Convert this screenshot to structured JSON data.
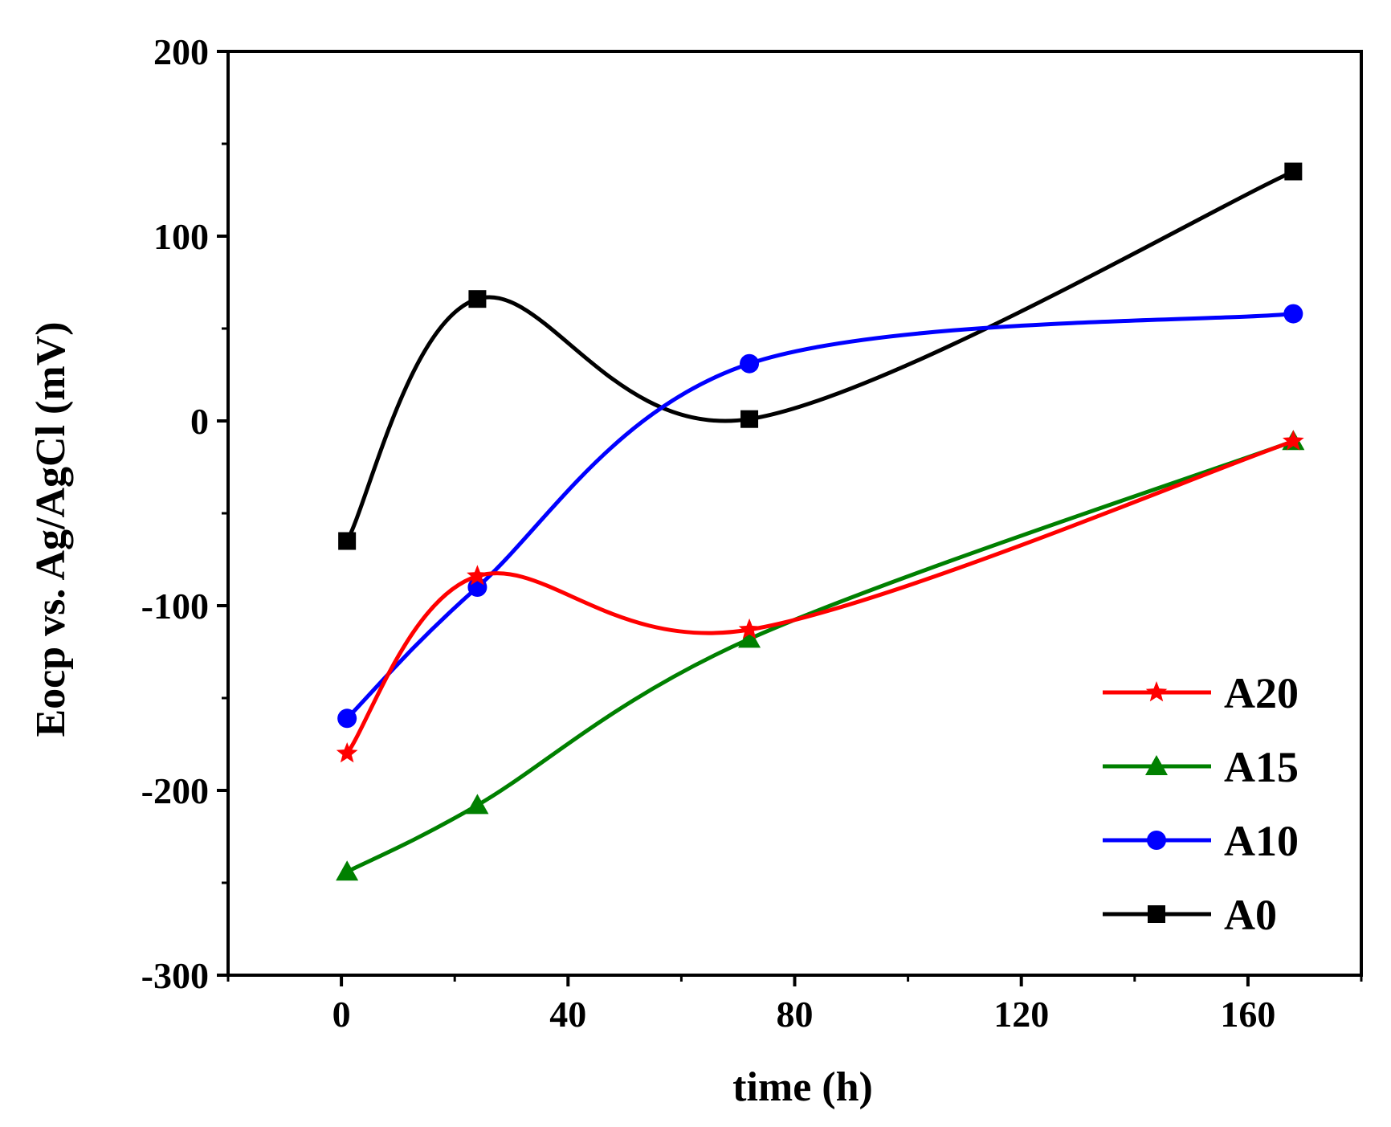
{
  "chart_data": {
    "type": "line",
    "title": "",
    "xlabel": "time (h)",
    "ylabel": "Eocp vs. Ag/AgCl (mV)",
    "xlim": [
      -20,
      180
    ],
    "ylim": [
      -300,
      200
    ],
    "xticks": [
      0,
      40,
      80,
      120,
      160
    ],
    "xtick_labels": [
      "0",
      "40",
      "80",
      "120",
      "160"
    ],
    "yticks": [
      -300,
      -200,
      -100,
      0,
      100,
      200
    ],
    "ytick_labels": [
      "-300",
      "-200",
      "-100",
      "0",
      "100",
      "200"
    ],
    "grid": false,
    "legend_position": "bottom-right",
    "x": [
      1,
      24,
      72,
      168
    ],
    "series": [
      {
        "name": "A20",
        "marker": "star",
        "color": "#ff0000",
        "values": [
          -180,
          -84,
          -113,
          -11
        ]
      },
      {
        "name": "A15",
        "marker": "triangle",
        "color": "#008000",
        "values": [
          -244,
          -208,
          -118,
          -11
        ]
      },
      {
        "name": "A10",
        "marker": "circle",
        "color": "#0000ff",
        "values": [
          -161,
          -90,
          31,
          58
        ]
      },
      {
        "name": "A0",
        "marker": "square",
        "color": "#000000",
        "values": [
          -65,
          66,
          1,
          135
        ]
      }
    ]
  }
}
